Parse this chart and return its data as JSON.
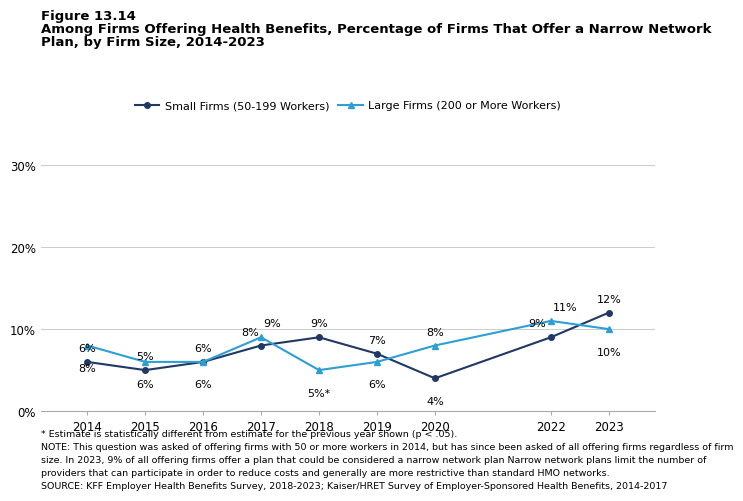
{
  "years": [
    2014,
    2015,
    2016,
    2017,
    2018,
    2019,
    2020,
    2022,
    2023
  ],
  "small_firms": [
    6,
    5,
    6,
    8,
    9,
    7,
    4,
    9,
    12
  ],
  "large_firms": [
    8,
    6,
    6,
    9,
    5,
    6,
    8,
    11,
    10
  ],
  "small_labels": [
    "6%",
    "5%",
    "6%",
    "8%",
    "9%",
    "7%",
    "4%",
    "9%",
    "12%"
  ],
  "large_labels": [
    "8%",
    "6%",
    "6%",
    "9%",
    "5%*",
    "6%",
    "8%",
    "11%",
    "10%"
  ],
  "small_color": "#1f3864",
  "large_color": "#2e9fd4",
  "small_label_offsets_x": [
    0,
    0,
    0,
    -8,
    0,
    0,
    0,
    -10,
    0
  ],
  "small_label_offsets_y": [
    6,
    6,
    6,
    6,
    6,
    6,
    -13,
    6,
    6
  ],
  "large_label_offsets_x": [
    0,
    0,
    0,
    8,
    0,
    0,
    0,
    10,
    0
  ],
  "large_label_offsets_y": [
    -13,
    -13,
    -13,
    6,
    -13,
    -13,
    6,
    6,
    -13
  ],
  "title_line1": "Figure 13.14",
  "title_line2": "Among Firms Offering Health Benefits, Percentage of Firms That Offer a Narrow Network",
  "title_line3": "Plan, by Firm Size, 2014-2023",
  "legend_small": "Small Firms (50-199 Workers)",
  "legend_large": "Large Firms (200 or More Workers)",
  "ylim": [
    0,
    32
  ],
  "yticks": [
    0,
    10,
    20,
    30
  ],
  "ytick_labels": [
    "0%",
    "10%",
    "20%",
    "30%"
  ],
  "footnote1": "* Estimate is statistically different from estimate for the previous year shown (p < .05).",
  "footnote2": "NOTE: This question was asked of offering firms with 50 or more workers in 2014, but has since been asked of all offering firms regardless of firm",
  "footnote3": "size. In 2023, 9% of all offering firms offer a plan that could be considered a narrow network plan Narrow network plans limit the number of",
  "footnote4": "providers that can participate in order to reduce costs and generally are more restrictive than standard HMO networks.",
  "footnote5": "SOURCE: KFF Employer Health Benefits Survey, 2018-2023; Kaiser/HRET Survey of Employer-Sponsored Health Benefits, 2014-2017",
  "bg_color": "#ffffff"
}
